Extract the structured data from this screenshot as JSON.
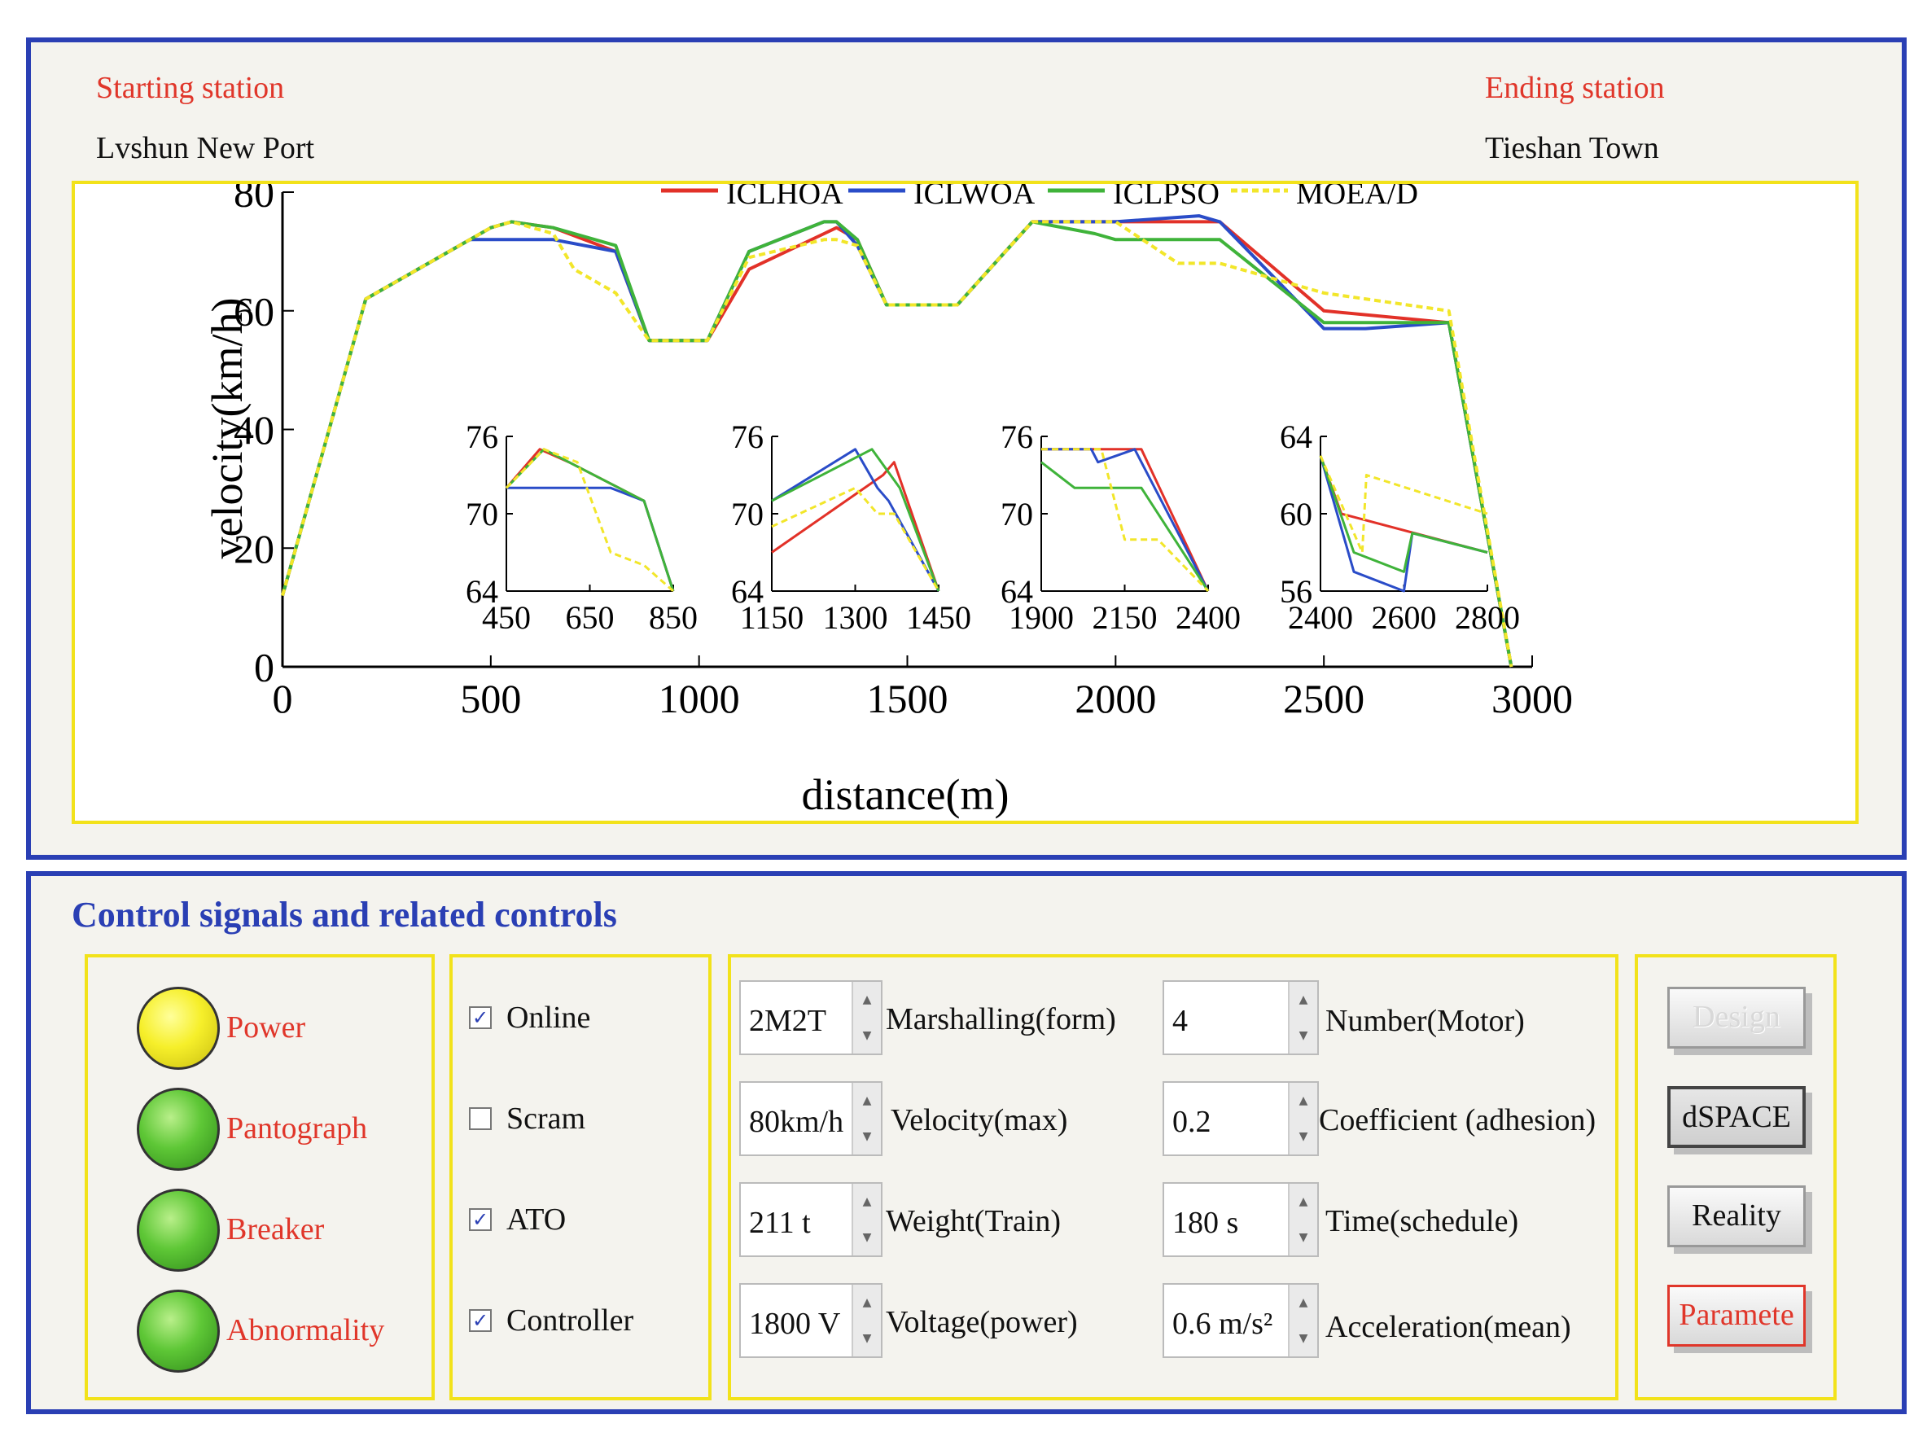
{
  "header": {
    "starting_label": "Starting station",
    "starting_value": "Lvshun New Port",
    "ending_label": "Ending station",
    "ending_value": "Tieshan Town"
  },
  "colors": {
    "panel_border": "#2a3fb4",
    "yellow_border": "#f2e21a",
    "label_red": "#e0362a",
    "ICLHOA": "#e23128",
    "ICLWOA": "#2a4cc8",
    "ICLPSO": "#3fb33a",
    "MOEA/D": "#f2e62a"
  },
  "chart_data": [
    {
      "type": "line",
      "title": "",
      "xlabel": "distance(m)",
      "ylabel": "velocity(km/h)",
      "xlim": [
        0,
        3000
      ],
      "ylim": [
        0,
        80
      ],
      "xticks": [
        0,
        500,
        1000,
        1500,
        2000,
        2500,
        3000
      ],
      "yticks": [
        0,
        20,
        40,
        60,
        80
      ],
      "legend": [
        "ICLHOA",
        "ICLWOA",
        "ICLPSO",
        "MOEA/D"
      ],
      "legend_position": "top",
      "series": [
        {
          "name": "ICLHOA",
          "x": [
            0,
            200,
            500,
            550,
            650,
            800,
            880,
            1020,
            1120,
            1300,
            1330,
            1380,
            1450,
            1620,
            1800,
            2000,
            2200,
            2250,
            2500,
            2800,
            2950
          ],
          "y": [
            12,
            62,
            74,
            75,
            74,
            70,
            55,
            55,
            67,
            73,
            74,
            72,
            61,
            61,
            75,
            75,
            75,
            75,
            60,
            58,
            0
          ]
        },
        {
          "name": "ICLWOA",
          "x": [
            0,
            200,
            450,
            500,
            650,
            800,
            880,
            1020,
            1120,
            1300,
            1330,
            1380,
            1450,
            1620,
            1800,
            2000,
            2200,
            2250,
            2500,
            2600,
            2800,
            2950
          ],
          "y": [
            12,
            62,
            72,
            72,
            72,
            70,
            55,
            55,
            70,
            75,
            75,
            71,
            61,
            61,
            75,
            75,
            76,
            75,
            57,
            57,
            58,
            0
          ]
        },
        {
          "name": "ICLPSO",
          "x": [
            0,
            200,
            500,
            550,
            650,
            800,
            880,
            1020,
            1120,
            1300,
            1330,
            1380,
            1450,
            1620,
            1800,
            1950,
            2000,
            2200,
            2250,
            2500,
            2800,
            2950
          ],
          "y": [
            12,
            62,
            74,
            75,
            74,
            71,
            55,
            55,
            70,
            75,
            75,
            72,
            61,
            61,
            75,
            73,
            72,
            72,
            72,
            58,
            58,
            0
          ]
        },
        {
          "name": "MOEA/D",
          "x": [
            0,
            200,
            500,
            550,
            650,
            700,
            800,
            880,
            1020,
            1120,
            1300,
            1330,
            1380,
            1450,
            1620,
            1800,
            2000,
            2150,
            2250,
            2500,
            2800,
            2950
          ],
          "y": [
            12,
            62,
            74,
            75,
            73,
            67,
            63,
            55,
            55,
            69,
            72,
            72,
            71,
            61,
            61,
            75,
            75,
            68,
            68,
            63,
            60,
            0
          ]
        }
      ]
    },
    {
      "type": "line",
      "title": "",
      "xlabel": "",
      "ylabel": "",
      "xlim": [
        450,
        850
      ],
      "ylim": [
        64,
        76
      ],
      "xticks": [
        450,
        650,
        850
      ],
      "yticks": [
        64,
        70,
        76
      ],
      "series": [
        {
          "name": "ICLHOA",
          "x": [
            450,
            530,
            600,
            780,
            850
          ],
          "y": [
            72,
            75,
            74,
            71,
            64
          ]
        },
        {
          "name": "ICLWOA",
          "x": [
            450,
            700,
            780,
            850
          ],
          "y": [
            72,
            72,
            71,
            64
          ]
        },
        {
          "name": "ICLPSO",
          "x": [
            450,
            540,
            600,
            780,
            850
          ],
          "y": [
            72,
            75,
            74,
            71,
            64
          ]
        },
        {
          "name": "MOEA/D",
          "x": [
            450,
            540,
            620,
            700,
            780,
            850
          ],
          "y": [
            72,
            75,
            74,
            67,
            66,
            64
          ]
        }
      ]
    },
    {
      "type": "line",
      "title": "",
      "xlabel": "",
      "ylabel": "",
      "xlim": [
        1150,
        1450
      ],
      "ylim": [
        64,
        76
      ],
      "xticks": [
        1150,
        1300,
        1450
      ],
      "yticks": [
        64,
        70,
        76
      ],
      "series": [
        {
          "name": "ICLHOA",
          "x": [
            1150,
            1350,
            1370,
            1450
          ],
          "y": [
            67,
            73,
            74,
            64
          ]
        },
        {
          "name": "ICLWOA",
          "x": [
            1150,
            1300,
            1340,
            1360,
            1450
          ],
          "y": [
            71,
            75,
            72,
            71,
            64
          ]
        },
        {
          "name": "ICLPSO",
          "x": [
            1150,
            1330,
            1380,
            1450
          ],
          "y": [
            71,
            75,
            72,
            64
          ]
        },
        {
          "name": "MOEA/D",
          "x": [
            1150,
            1300,
            1340,
            1370,
            1450
          ],
          "y": [
            69,
            72,
            70,
            70,
            64
          ]
        }
      ]
    },
    {
      "type": "line",
      "title": "",
      "xlabel": "",
      "ylabel": "",
      "xlim": [
        1900,
        2400
      ],
      "ylim": [
        64,
        76
      ],
      "xticks": [
        1900,
        2150,
        2400
      ],
      "yticks": [
        64,
        70,
        76
      ],
      "series": [
        {
          "name": "ICLHOA",
          "x": [
            1900,
            2200,
            2400
          ],
          "y": [
            75,
            75,
            64
          ]
        },
        {
          "name": "ICLWOA",
          "x": [
            1900,
            2050,
            2070,
            2180,
            2400
          ],
          "y": [
            75,
            75,
            74,
            75,
            64
          ]
        },
        {
          "name": "ICLPSO",
          "x": [
            1900,
            1950,
            2000,
            2200,
            2400
          ],
          "y": [
            74,
            73,
            72,
            72,
            64
          ]
        },
        {
          "name": "MOEA/D",
          "x": [
            1900,
            2080,
            2150,
            2250,
            2400
          ],
          "y": [
            75,
            75,
            68,
            68,
            64
          ]
        }
      ]
    },
    {
      "type": "line",
      "title": "",
      "xlabel": "",
      "ylabel": "",
      "xlim": [
        2400,
        2800
      ],
      "ylim": [
        56,
        64
      ],
      "xticks": [
        2400,
        2600,
        2800
      ],
      "yticks": [
        56,
        60,
        64
      ],
      "series": [
        {
          "name": "ICLHOA",
          "x": [
            2400,
            2450,
            2800
          ],
          "y": [
            63,
            60,
            58
          ]
        },
        {
          "name": "ICLWOA",
          "x": [
            2400,
            2480,
            2600,
            2620,
            2800
          ],
          "y": [
            63,
            57,
            56,
            59,
            58
          ]
        },
        {
          "name": "ICLPSO",
          "x": [
            2400,
            2480,
            2600,
            2620,
            2800
          ],
          "y": [
            63,
            58,
            57,
            59,
            58
          ]
        },
        {
          "name": "MOEA/D",
          "x": [
            2400,
            2500,
            2510,
            2800
          ],
          "y": [
            63,
            58,
            62,
            60
          ]
        }
      ]
    }
  ],
  "controls": {
    "section_title": "Control signals and related controls",
    "indicators": [
      {
        "label": "Power",
        "color": "yellow"
      },
      {
        "label": "Pantograph",
        "color": "green"
      },
      {
        "label": "Breaker",
        "color": "green"
      },
      {
        "label": "Abnormality",
        "color": "green"
      }
    ],
    "checkboxes": [
      {
        "label": "Online",
        "checked": true
      },
      {
        "label": "Scram",
        "checked": false
      },
      {
        "label": "ATO",
        "checked": true
      },
      {
        "label": "Controller",
        "checked": true
      }
    ],
    "params_left": [
      {
        "value": "2M2T",
        "label": "Marshalling(form)"
      },
      {
        "value": "80km/h",
        "label": "Velocity(max)"
      },
      {
        "value": "211 t",
        "label": "Weight(Train)"
      },
      {
        "value": "1800 V",
        "label": "Voltage(power)"
      }
    ],
    "params_right": [
      {
        "value": "4",
        "label": "Number(Motor)"
      },
      {
        "value": "0.2",
        "label": "Coefficient (adhesion)"
      },
      {
        "value": "180 s",
        "label": "Time(schedule)"
      },
      {
        "value": "0.6 m/s²",
        "label": "Acceleration(mean)"
      }
    ],
    "buttons": [
      {
        "label": "Design",
        "state": "disabled"
      },
      {
        "label": "dSPACE",
        "state": "pressed"
      },
      {
        "label": "Reality",
        "state": "normal"
      },
      {
        "label": "Paramete",
        "state": "highlighted"
      }
    ],
    "spin_up": "▲",
    "spin_down": "▼",
    "check_mark": "✓"
  }
}
